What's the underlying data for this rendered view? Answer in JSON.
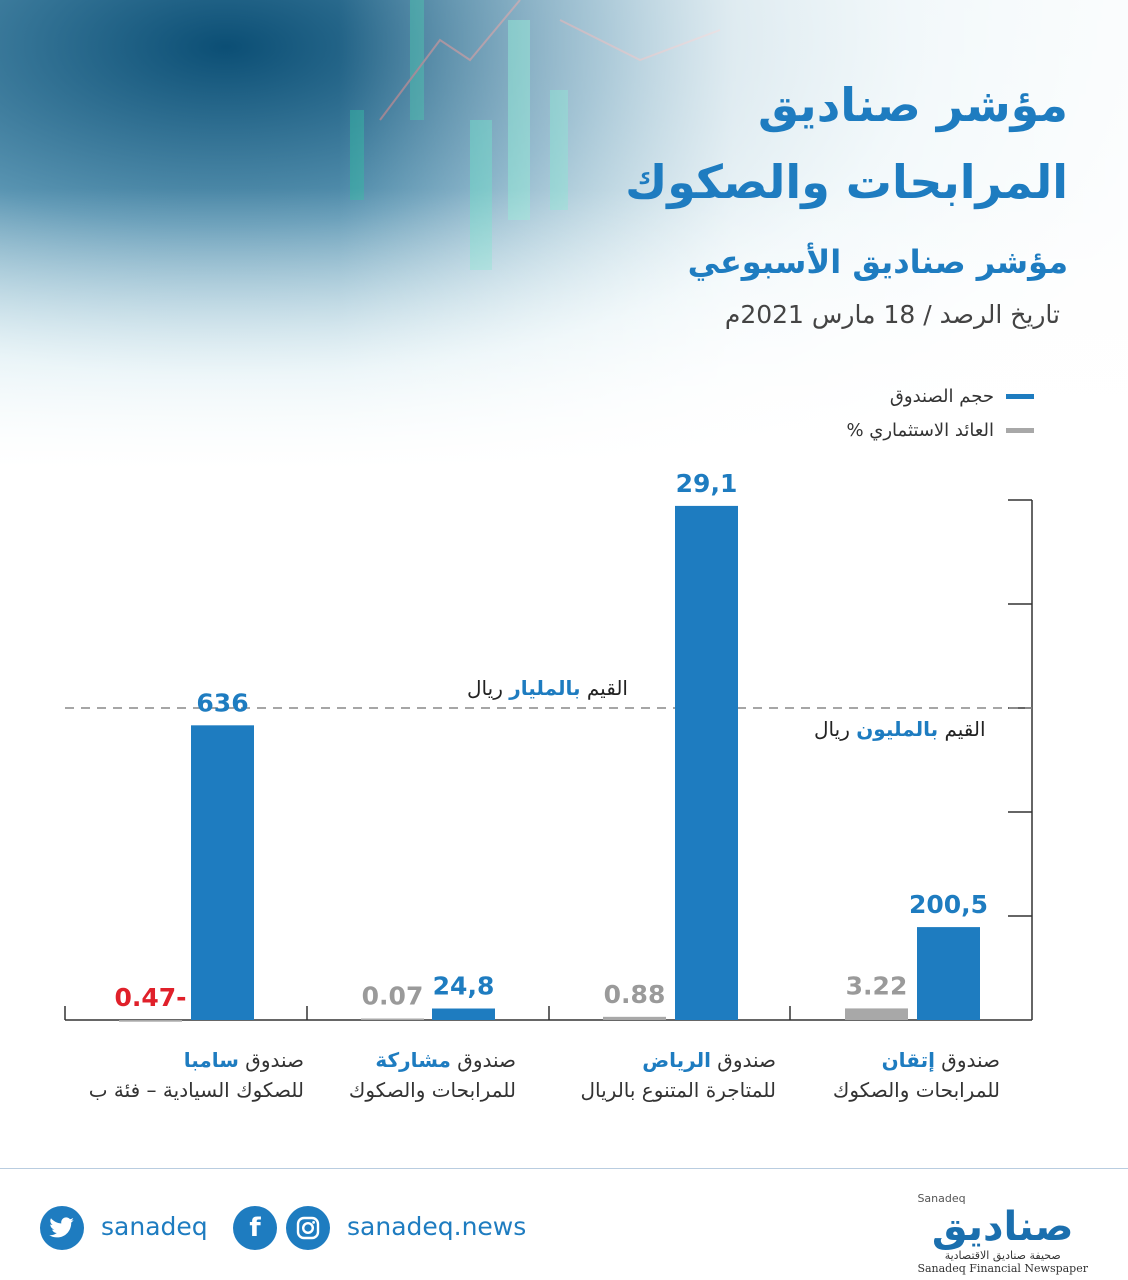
{
  "header": {
    "title_line1": "مؤشر صناديق",
    "title_line2": "المرابحات والصكوك",
    "subtitle": "مؤشر صناديق الأسبوعي",
    "date": "تاريخ الرصد / 18 مارس 2021م"
  },
  "legend": {
    "size_label": "حجم الصندوق",
    "return_label": "العائد الاستثماري %"
  },
  "units": {
    "billion_prefix": "القيم ",
    "billion_bold": "بالمليار",
    "billion_suffix": " ريال",
    "million_prefix": "القيم ",
    "million_bold": "بالمليون",
    "million_suffix": " ريال"
  },
  "colors": {
    "size_bar": "#1e7cc0",
    "return_bar": "#a8a8a8",
    "negative_text": "#e0202a",
    "accent": "#1e7cc0"
  },
  "chart_data": {
    "type": "bar",
    "categories": [
      {
        "line1_prefix": "صندوق ",
        "line1_bold": "إتقان",
        "line2": "للمرابحات والصكوك"
      },
      {
        "line1_prefix": "صندوق ",
        "line1_bold": "الرياض",
        "line2": "للمتاجرة المتنوع بالريال"
      },
      {
        "line1_prefix": "صندوق ",
        "line1_bold": "مشاركة",
        "line2": "للمرابحات والصكوك"
      },
      {
        "line1_prefix": "صندوق ",
        "line1_bold": "سامبا",
        "line2": "للصكوك السيادية – فئة ب"
      }
    ],
    "series": [
      {
        "name": "حجم الصندوق",
        "values": [
          200.5,
          29.1,
          24.8,
          636
        ],
        "labels": [
          "200,5",
          "29,1",
          "24,8",
          "636"
        ],
        "units": [
          "million",
          "billion",
          "million",
          "million"
        ]
      },
      {
        "name": "العائد الاستثماري %",
        "values": [
          3.22,
          0.88,
          0.07,
          -0.47
        ],
        "labels": [
          "3.22",
          "0.88",
          "0.07",
          "0.47-"
        ]
      }
    ]
  },
  "footer": {
    "twitter_icon": "twitter-icon",
    "twitter_handle": "sanadeq",
    "facebook_icon": "facebook-icon",
    "instagram_icon": "instagram-icon",
    "website": "sanadeq.news",
    "logo_text": "صناديق",
    "logo_sub_ar": "صحيفة صناديق الاقتصادية",
    "logo_sub_en": "Sanadeq Financial Newspaper",
    "logo_tag": "Sanadeq"
  }
}
